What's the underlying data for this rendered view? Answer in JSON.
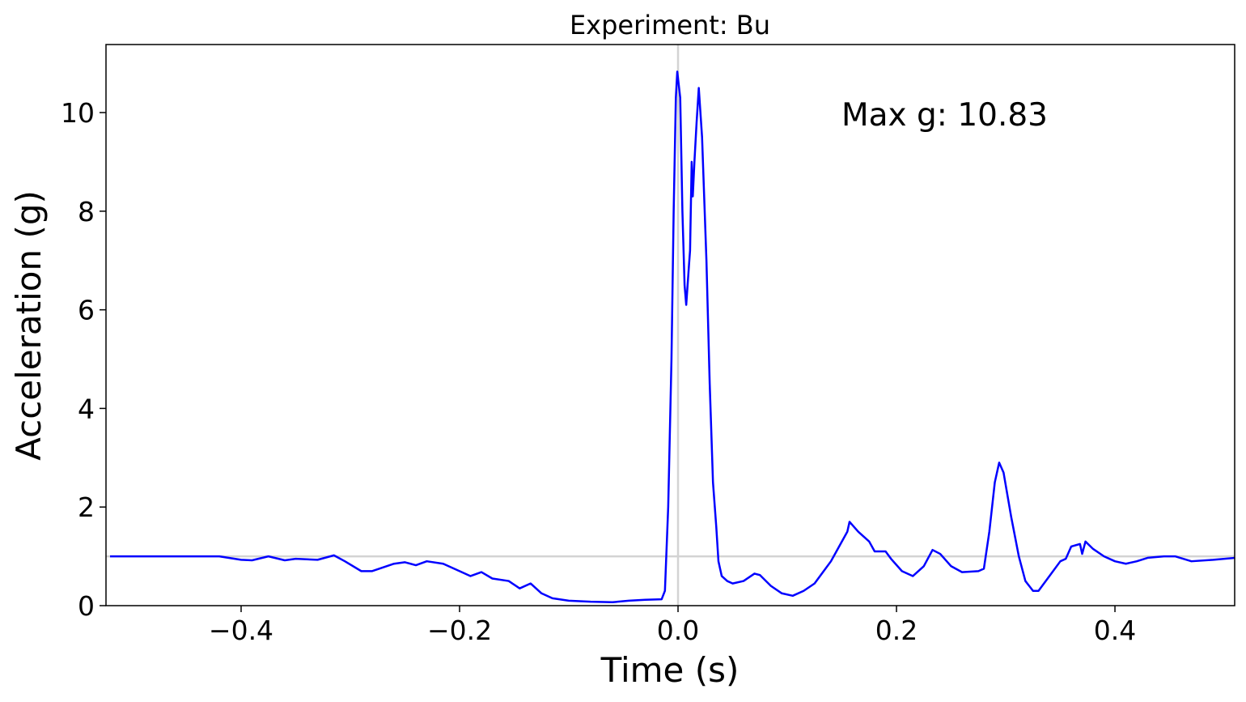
{
  "chart_data": {
    "type": "line",
    "title": "Experiment: Bu",
    "xlabel": "Time (s)",
    "ylabel": "Acceleration (g)",
    "annotation": "Max g: 10.83",
    "annotation_color": "#008000",
    "reference_lines": {
      "x": [
        0
      ],
      "y": [
        1
      ],
      "color": "#d3d3d3"
    },
    "x": [
      -0.52,
      -0.45,
      -0.42,
      -0.4,
      -0.39,
      -0.375,
      -0.36,
      -0.35,
      -0.33,
      -0.315,
      -0.305,
      -0.29,
      -0.28,
      -0.26,
      -0.25,
      -0.24,
      -0.23,
      -0.215,
      -0.2,
      -0.19,
      -0.18,
      -0.17,
      -0.155,
      -0.145,
      -0.135,
      -0.125,
      -0.115,
      -0.1,
      -0.08,
      -0.06,
      -0.045,
      -0.03,
      -0.015,
      -0.012,
      -0.009,
      -0.006,
      -0.004,
      -0.002,
      -0.0007,
      0.002,
      0.004,
      0.006,
      0.0075,
      0.01,
      0.011,
      0.0125,
      0.0135,
      0.015,
      0.017,
      0.019,
      0.022,
      0.026,
      0.029,
      0.032,
      0.035,
      0.037,
      0.04,
      0.045,
      0.05,
      0.06,
      0.07,
      0.075,
      0.085,
      0.095,
      0.105,
      0.115,
      0.125,
      0.14,
      0.145,
      0.155,
      0.157,
      0.165,
      0.175,
      0.18,
      0.19,
      0.195,
      0.205,
      0.215,
      0.225,
      0.233,
      0.24,
      0.25,
      0.26,
      0.275,
      0.28,
      0.285,
      0.29,
      0.294,
      0.298,
      0.305,
      0.312,
      0.318,
      0.325,
      0.33,
      0.34,
      0.35,
      0.355,
      0.36,
      0.368,
      0.37,
      0.373,
      0.38,
      0.39,
      0.4,
      0.41,
      0.42,
      0.43,
      0.445,
      0.455,
      0.47,
      0.49,
      0.51
    ],
    "series": [
      {
        "name": "Acceleration",
        "color": "#0000ff",
        "values": [
          1.0,
          1.0,
          1.0,
          0.93,
          0.92,
          1.0,
          0.92,
          0.95,
          0.93,
          1.02,
          0.9,
          0.7,
          0.7,
          0.85,
          0.88,
          0.82,
          0.9,
          0.85,
          0.7,
          0.6,
          0.68,
          0.55,
          0.5,
          0.35,
          0.45,
          0.25,
          0.15,
          0.1,
          0.08,
          0.07,
          0.1,
          0.12,
          0.13,
          0.3,
          2.0,
          5.0,
          8.0,
          10.3,
          10.83,
          10.3,
          8.0,
          6.5,
          6.1,
          6.9,
          7.2,
          9.0,
          8.3,
          9.0,
          9.8,
          10.5,
          9.5,
          7.0,
          4.5,
          2.5,
          1.6,
          0.9,
          0.6,
          0.5,
          0.45,
          0.5,
          0.65,
          0.62,
          0.4,
          0.25,
          0.2,
          0.3,
          0.45,
          0.9,
          1.1,
          1.5,
          1.7,
          1.5,
          1.3,
          1.1,
          1.1,
          0.95,
          0.7,
          0.6,
          0.8,
          1.13,
          1.05,
          0.8,
          0.68,
          0.7,
          0.75,
          1.5,
          2.5,
          2.9,
          2.7,
          1.8,
          1.0,
          0.5,
          0.3,
          0.3,
          0.6,
          0.9,
          0.95,
          1.2,
          1.25,
          1.05,
          1.3,
          1.15,
          1.0,
          0.9,
          0.85,
          0.9,
          0.97,
          1.0,
          1.0,
          0.9,
          0.93,
          0.97
        ]
      }
    ],
    "xlim": [
      -0.5237,
      0.5096
    ],
    "ylim": [
      0,
      11.38
    ],
    "xticks": [
      {
        "value": -0.4,
        "label": "−0.4"
      },
      {
        "value": -0.2,
        "label": "−0.2"
      },
      {
        "value": 0,
        "label": "0.0"
      },
      0.2,
      0.4
    ],
    "yticks": [
      0,
      2,
      4,
      6,
      8,
      10
    ]
  }
}
